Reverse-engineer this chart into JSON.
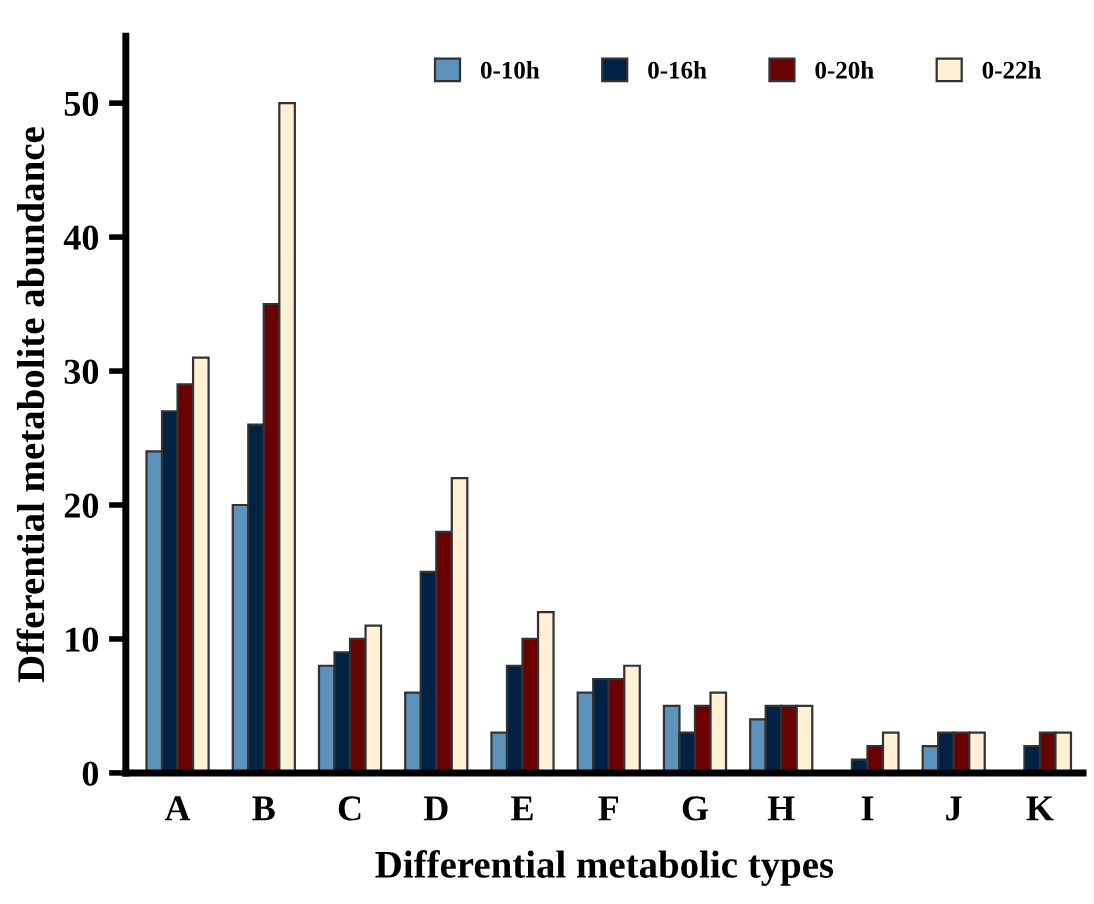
{
  "chart_data": {
    "type": "bar",
    "xlabel": "Differential metabolic types",
    "ylabel": "Dfferential metabolite abundance",
    "categories": [
      "A",
      "B",
      "C",
      "D",
      "E",
      "F",
      "G",
      "H",
      "I",
      "J",
      "K"
    ],
    "series": [
      {
        "name": "0-10h",
        "color": "#5b93bd",
        "values": [
          24,
          20,
          8,
          6,
          3,
          6,
          5,
          4,
          null,
          2,
          null
        ]
      },
      {
        "name": "0-16h",
        "color": "#002244",
        "values": [
          27,
          26,
          9,
          15,
          8,
          7,
          3,
          5,
          1,
          3,
          2
        ]
      },
      {
        "name": "0-20h",
        "color": "#6b0000",
        "values": [
          29,
          35,
          10,
          18,
          10,
          7,
          5,
          5,
          2,
          3,
          3
        ]
      },
      {
        "name": "0-22h",
        "color": "#fff0d6",
        "values": [
          31,
          50,
          11,
          22,
          12,
          8,
          6,
          5,
          3,
          3,
          3
        ]
      }
    ],
    "ylim": [
      0,
      55
    ],
    "yticks": [
      0,
      10,
      20,
      30,
      40,
      50
    ],
    "grid": false,
    "legend": "top right"
  }
}
